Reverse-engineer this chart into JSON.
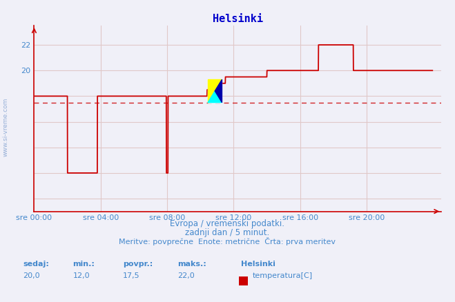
{
  "title": "Helsinki",
  "subtitle_lines": [
    "Evropa / vremenski podatki.",
    "zadnji dan / 5 minut.",
    "Meritve: povprečne  Enote: metrične  Črta: prva meritev"
  ],
  "xlabel_ticks": [
    "sre 00:00",
    "sre 04:00",
    "sre 08:00",
    "sre 12:00",
    "sre 16:00",
    "sre 20:00"
  ],
  "xlabel_tick_pos": [
    0,
    4,
    8,
    12,
    16,
    20
  ],
  "ytick_display": [
    20,
    22
  ],
  "ylim": [
    9.0,
    23.5
  ],
  "xlim": [
    0,
    24.5
  ],
  "avg_line_y": 17.5,
  "line_color": "#cc0000",
  "dashed_color": "#cc0000",
  "grid_color": "#e0c8c8",
  "bg_color": "#f0f0f8",
  "title_color": "#0000cc",
  "axis_color": "#cc0000",
  "text_color": "#4488cc",
  "watermark_text": "www.si-vreme.com",
  "legend_bold": "Helsinki",
  "legend_series": "temperatura[C]",
  "legend_color": "#cc0000",
  "stats_labels": [
    "sedaj:",
    "min.:",
    "povpr.:",
    "maks.:"
  ],
  "stats_values": [
    "20,0",
    "12,0",
    "17,5",
    "22,0"
  ],
  "temp_data": [
    [
      0.0,
      18.0
    ],
    [
      2.0,
      18.0
    ],
    [
      2.01,
      12.0
    ],
    [
      3.8,
      12.0
    ],
    [
      3.81,
      18.0
    ],
    [
      7.95,
      18.0
    ],
    [
      7.96,
      12.0
    ],
    [
      8.05,
      12.0
    ],
    [
      8.06,
      18.0
    ],
    [
      10.4,
      18.0
    ],
    [
      10.41,
      18.5
    ],
    [
      11.0,
      18.5
    ],
    [
      11.01,
      19.0
    ],
    [
      11.5,
      19.0
    ],
    [
      11.51,
      19.5
    ],
    [
      12.0,
      19.5
    ],
    [
      12.6,
      19.5
    ],
    [
      14.0,
      19.5
    ],
    [
      14.01,
      20.0
    ],
    [
      17.1,
      20.0
    ],
    [
      17.11,
      22.0
    ],
    [
      19.2,
      22.0
    ],
    [
      19.21,
      20.0
    ],
    [
      24.0,
      20.0
    ]
  ]
}
